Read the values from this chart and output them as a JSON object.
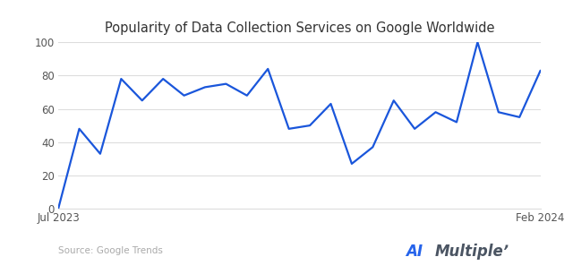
{
  "title": "Popularity of Data Collection Services on Google Worldwide",
  "source_text": "Source: Google Trends",
  "x_start_label": "Jul 2023",
  "x_end_label": "Feb 2024",
  "ylim": [
    0,
    100
  ],
  "yticks": [
    0,
    20,
    40,
    60,
    80,
    100
  ],
  "line_color": "#1a56db",
  "line_width": 1.6,
  "background_color": "#ffffff",
  "grid_color": "#dddddd",
  "title_fontsize": 10.5,
  "tick_fontsize": 8.5,
  "source_fontsize": 7.5,
  "ai_color": "#2563eb",
  "multiple_color": "#4b5563",
  "y_values": [
    0,
    48,
    33,
    78,
    65,
    78,
    68,
    73,
    75,
    68,
    84,
    48,
    50,
    63,
    27,
    37,
    65,
    48,
    58,
    52,
    100,
    58,
    55,
    83
  ]
}
